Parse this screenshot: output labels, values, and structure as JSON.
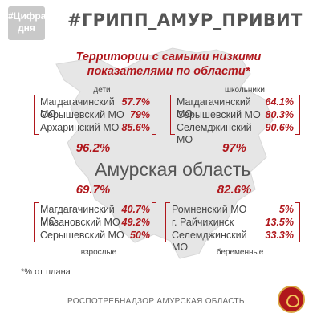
{
  "badge": {
    "line1": "#Цифра",
    "line2": "дня"
  },
  "hashtag": "#ГРИПП_АМУР_ПРИВИТ",
  "heading": {
    "line1": "Территории с самыми низкими",
    "line2": "показателями по области*"
  },
  "region_title": "Амурская область",
  "groups": [
    {
      "label": "дети",
      "total": "96.2%",
      "rows": [
        {
          "name": "Магдагачинский МО",
          "value": "57.7%"
        },
        {
          "name": "Серышевский МО",
          "value": "79%"
        },
        {
          "name": "Архаринский МО",
          "value": "85.6%"
        }
      ]
    },
    {
      "label": "школьники",
      "total": "97%",
      "rows": [
        {
          "name": "Магдагачинский МО",
          "value": "64.1%"
        },
        {
          "name": "Серышевский МО",
          "value": "80.3%"
        },
        {
          "name": "Селемджинский МО",
          "value": "90.6%"
        }
      ]
    },
    {
      "label": "взрослые",
      "total": "69.7%",
      "rows": [
        {
          "name": "Магдагачинский МО",
          "value": "40.7%"
        },
        {
          "name": "Мазановский МО",
          "value": "49.2%"
        },
        {
          "name": "Серышевский МО",
          "value": "50%"
        }
      ]
    },
    {
      "label": "беременные",
      "total": "82.6%",
      "rows": [
        {
          "name": "Ромненский МО",
          "value": "5%"
        },
        {
          "name": "г. Райчихинск",
          "value": "13.5%"
        },
        {
          "name": "Селемджинский МО",
          "value": "33.3%"
        }
      ]
    }
  ],
  "footnote": "*% от плана",
  "source": "РОСПОТРЕБНАДЗОР АМУРСКАЯ ОБЛАСТЬ",
  "colors": {
    "accent": "#b0171c",
    "badge": "#c9c9c9",
    "map": "#e6e6e6"
  }
}
